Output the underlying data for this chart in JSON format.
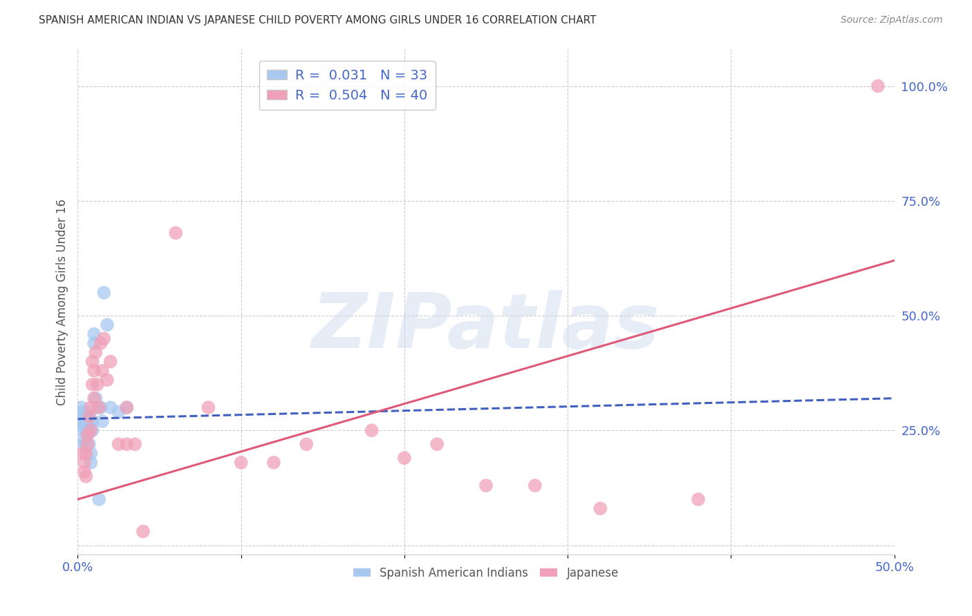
{
  "title": "SPANISH AMERICAN INDIAN VS JAPANESE CHILD POVERTY AMONG GIRLS UNDER 16 CORRELATION CHART",
  "source": "Source: ZipAtlas.com",
  "ylabel": "Child Poverty Among Girls Under 16",
  "xlim": [
    0.0,
    0.5
  ],
  "ylim": [
    -0.02,
    1.08
  ],
  "xticks": [
    0.0,
    0.1,
    0.2,
    0.3,
    0.4,
    0.5
  ],
  "xticklabels": [
    "0.0%",
    "",
    "",
    "",
    "",
    "50.0%"
  ],
  "yticks": [
    0.0,
    0.25,
    0.5,
    0.75,
    1.0
  ],
  "yticklabels": [
    "",
    "25.0%",
    "50.0%",
    "75.0%",
    "100.0%"
  ],
  "grid_color": "#cccccc",
  "background_color": "#ffffff",
  "watermark": "ZIPatlas",
  "legend_r1": "R =  0.031   N = 33",
  "legend_r2": "R =  0.504   N = 40",
  "color_blue": "#a8c8f0",
  "color_pink": "#f0a0b8",
  "line_blue": "#4060c0",
  "line_pink": "#e05878",
  "title_color": "#333333",
  "axis_label_color": "#555555",
  "tick_label_color": "#4466cc",
  "source_color": "#888888",
  "sai_x": [
    0.001,
    0.002,
    0.002,
    0.003,
    0.003,
    0.004,
    0.004,
    0.004,
    0.005,
    0.005,
    0.005,
    0.006,
    0.006,
    0.006,
    0.007,
    0.007,
    0.007,
    0.008,
    0.008,
    0.009,
    0.009,
    0.01,
    0.01,
    0.011,
    0.012,
    0.013,
    0.014,
    0.015,
    0.016,
    0.018,
    0.02,
    0.025,
    0.03
  ],
  "sai_y": [
    0.28,
    0.3,
    0.27,
    0.29,
    0.25,
    0.26,
    0.23,
    0.22,
    0.27,
    0.25,
    0.22,
    0.29,
    0.27,
    0.24,
    0.28,
    0.26,
    0.22,
    0.2,
    0.18,
    0.27,
    0.25,
    0.46,
    0.44,
    0.32,
    0.3,
    0.1,
    0.3,
    0.27,
    0.55,
    0.48,
    0.3,
    0.29,
    0.3
  ],
  "jpn_x": [
    0.003,
    0.004,
    0.004,
    0.005,
    0.005,
    0.006,
    0.006,
    0.007,
    0.008,
    0.008,
    0.009,
    0.009,
    0.01,
    0.01,
    0.011,
    0.012,
    0.013,
    0.014,
    0.015,
    0.016,
    0.018,
    0.02,
    0.025,
    0.03,
    0.03,
    0.035,
    0.04,
    0.06,
    0.08,
    0.1,
    0.12,
    0.14,
    0.18,
    0.2,
    0.22,
    0.25,
    0.28,
    0.32,
    0.38,
    0.49
  ],
  "jpn_y": [
    0.2,
    0.16,
    0.18,
    0.2,
    0.15,
    0.24,
    0.22,
    0.28,
    0.3,
    0.25,
    0.35,
    0.4,
    0.32,
    0.38,
    0.42,
    0.35,
    0.3,
    0.44,
    0.38,
    0.45,
    0.36,
    0.4,
    0.22,
    0.22,
    0.3,
    0.22,
    0.03,
    0.68,
    0.3,
    0.18,
    0.18,
    0.22,
    0.25,
    0.19,
    0.22,
    0.13,
    0.13,
    0.08,
    0.1,
    1.0
  ],
  "sai_line_x": [
    0.0,
    0.5
  ],
  "sai_line_y": [
    0.275,
    0.32
  ],
  "jpn_line_x": [
    0.0,
    0.5
  ],
  "jpn_line_y": [
    0.1,
    0.62
  ]
}
